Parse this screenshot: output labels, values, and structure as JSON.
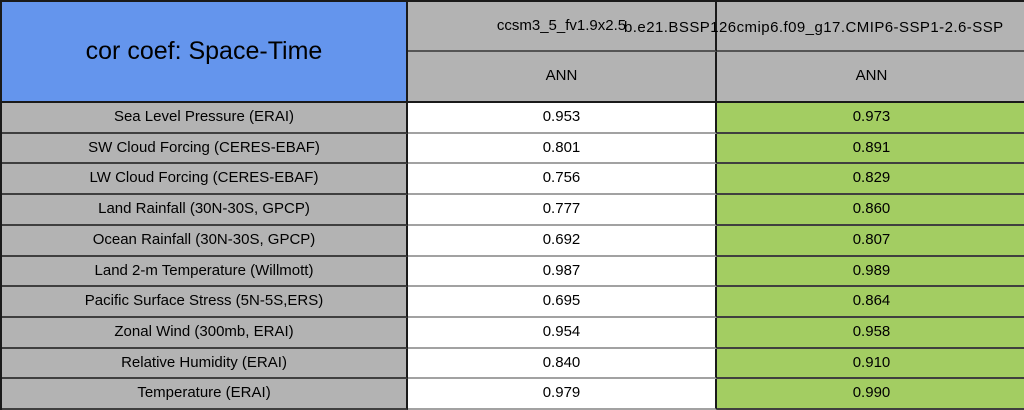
{
  "title": "cor coef: Space-Time",
  "header": {
    "col1_model": "ccsm3_5_fv1.9x2.5",
    "col2_model": "b.e21.BSSP126cmip6.f09_g17.CMIP6-SSP1-2.6-SSP",
    "col1_season": "ANN",
    "col2_season": "ANN"
  },
  "rows": [
    {
      "label": "Sea Level Pressure (ERAI)",
      "v1": "0.953",
      "v2": "0.973"
    },
    {
      "label": "SW Cloud Forcing (CERES-EBAF)",
      "v1": "0.801",
      "v2": "0.891"
    },
    {
      "label": "LW Cloud Forcing (CERES-EBAF)",
      "v1": "0.756",
      "v2": "0.829"
    },
    {
      "label": "Land Rainfall (30N-30S, GPCP)",
      "v1": "0.777",
      "v2": "0.860"
    },
    {
      "label": "Ocean Rainfall (30N-30S, GPCP)",
      "v1": "0.692",
      "v2": "0.807"
    },
    {
      "label": "Land 2-m Temperature (Willmott)",
      "v1": "0.987",
      "v2": "0.989"
    },
    {
      "label": "Pacific Surface Stress (5N-5S,ERS)",
      "v1": "0.695",
      "v2": "0.864"
    },
    {
      "label": "Zonal Wind (300mb, ERAI)",
      "v1": "0.954",
      "v2": "0.958"
    },
    {
      "label": "Relative Humidity (ERAI)",
      "v1": "0.840",
      "v2": "0.910"
    },
    {
      "label": "Temperature (ERAI)",
      "v1": "0.979",
      "v2": "0.990"
    }
  ],
  "colors": {
    "title_bg": "#6495ed",
    "header_bg": "#b3b3b3",
    "label_bg": "#b3b3b3",
    "model1_value_bg": "#ffffff",
    "model2_value_bg": "#a3cd62",
    "border": "#1a1a1a",
    "text": "#000000"
  },
  "chart_data": {
    "type": "table",
    "title": "cor coef: Space-Time",
    "columns": [
      {
        "model": "ccsm3_5_fv1.9x2.5",
        "season": "ANN"
      },
      {
        "model": "b.e21.BSSP126cmip6.f09_g17.CMIP6-SSP1-2.6-SSP",
        "season": "ANN"
      }
    ],
    "categories": [
      "Sea Level Pressure (ERAI)",
      "SW Cloud Forcing (CERES-EBAF)",
      "LW Cloud Forcing (CERES-EBAF)",
      "Land Rainfall (30N-30S, GPCP)",
      "Ocean Rainfall (30N-30S, GPCP)",
      "Land 2-m Temperature (Willmott)",
      "Pacific Surface Stress (5N-5S,ERS)",
      "Zonal Wind (300mb, ERAI)",
      "Relative Humidity (ERAI)",
      "Temperature (ERAI)"
    ],
    "series": [
      {
        "name": "ccsm3_5_fv1.9x2.5 ANN",
        "values": [
          0.953,
          0.801,
          0.756,
          0.777,
          0.692,
          0.987,
          0.695,
          0.954,
          0.84,
          0.979
        ]
      },
      {
        "name": "b.e21.BSSP126cmip6.f09_g17.CMIP6-SSP1-2.6-SSP ANN",
        "values": [
          0.973,
          0.891,
          0.829,
          0.86,
          0.807,
          0.989,
          0.864,
          0.958,
          0.91,
          0.99
        ]
      }
    ]
  }
}
